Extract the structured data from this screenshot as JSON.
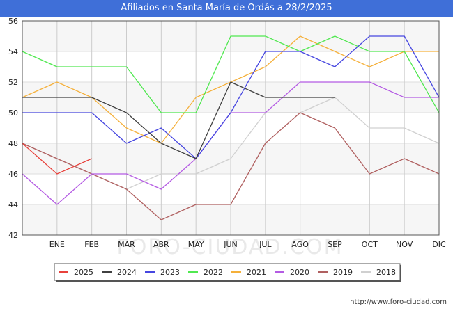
{
  "title": "Afiliados en Santa María de Ordás a 28/2/2025",
  "watermark": "FORO-CIUDAD.COM",
  "url": "http://www.foro-ciudad.com",
  "colors": {
    "title_bar": "#3f6fd8",
    "2025": "#e8413b",
    "2024": "#404040",
    "2023": "#4646e0",
    "2022": "#50e850",
    "2021": "#f5b03a",
    "2020": "#b45be3",
    "2019": "#b06060",
    "2018": "#d0d0d0"
  },
  "chart_data": {
    "type": "line",
    "title": "Afiliados en Santa María de Ordás a 28/2/2025",
    "categories": [
      "",
      "ENE",
      "FEB",
      "MAR",
      "ABR",
      "MAY",
      "JUN",
      "JUL",
      "AGO",
      "SEP",
      "OCT",
      "NOV",
      "DIC"
    ],
    "ylim": [
      42,
      56
    ],
    "yticks": [
      42,
      44,
      46,
      48,
      50,
      52,
      54,
      56
    ],
    "grid": true,
    "legend_position": "bottom",
    "series": [
      {
        "name": "2025",
        "values": [
          48,
          46,
          47,
          null,
          null,
          null,
          null,
          null,
          null,
          null,
          null,
          null,
          null
        ]
      },
      {
        "name": "2024",
        "values": [
          51,
          51,
          51,
          50,
          48,
          47,
          52,
          51,
          51,
          51,
          null,
          null,
          null
        ]
      },
      {
        "name": "2023",
        "values": [
          50,
          50,
          50,
          48,
          49,
          47,
          50,
          54,
          54,
          53,
          55,
          55,
          51
        ]
      },
      {
        "name": "2022",
        "values": [
          54,
          53,
          53,
          53,
          50,
          50,
          55,
          55,
          54,
          55,
          54,
          54,
          50
        ]
      },
      {
        "name": "2021",
        "values": [
          51,
          52,
          51,
          49,
          48,
          51,
          52,
          53,
          55,
          54,
          53,
          54,
          54
        ]
      },
      {
        "name": "2020",
        "values": [
          46,
          44,
          46,
          46,
          45,
          47,
          50,
          50,
          52,
          52,
          52,
          51,
          51
        ]
      },
      {
        "name": "2019",
        "values": [
          48,
          47,
          46,
          45,
          43,
          44,
          44,
          48,
          50,
          49,
          46,
          47,
          46
        ]
      },
      {
        "name": "2018",
        "values": [
          48,
          47,
          46,
          45,
          46,
          46,
          47,
          50,
          50,
          51,
          49,
          49,
          48
        ]
      }
    ]
  }
}
